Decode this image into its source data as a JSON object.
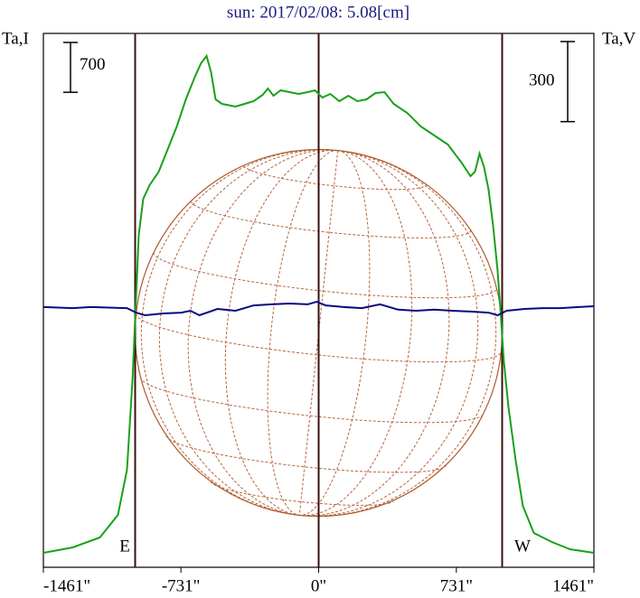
{
  "chart_data": {
    "type": "line",
    "title": "sun: 2017/02/08: 5.08[cm]",
    "ylabel": "Ta,I",
    "y2label": "Ta,V",
    "xlim": [
      -1461,
      1461
    ],
    "xticks": [
      {
        "value": -1461,
        "label": "-1461\""
      },
      {
        "value": -731,
        "label": "-731\""
      },
      {
        "value": 0,
        "label": "0\""
      },
      {
        "value": 731,
        "label": "731\""
      },
      {
        "value": 1461,
        "label": "1461\""
      }
    ],
    "ylim": [
      0,
      7500
    ],
    "y2lim": [
      -1000,
      1000
    ],
    "y_scale_bar": 700,
    "y2_scale_bar": 300,
    "vlines": [
      -974,
      0,
      974
    ],
    "annotations": [
      "E",
      "W"
    ],
    "series": [
      {
        "name": "Ta,I",
        "color": "#1aa01a",
        "x": [
          -1461,
          -1305,
          -1161,
          -1065,
          -1017,
          -988,
          -969,
          -955,
          -931,
          -897,
          -849,
          -801,
          -753,
          -705,
          -657,
          -624,
          -595,
          -571,
          -547,
          -513,
          -441,
          -393,
          -345,
          -297,
          -269,
          -240,
          -202,
          -154,
          -106,
          -58,
          -19,
          19,
          62,
          110,
          158,
          206,
          254,
          302,
          350,
          398,
          470,
          542,
          614,
          686,
          758,
          806,
          830,
          854,
          878,
          902,
          926,
          950,
          964,
          983,
          1007,
          1046,
          1084,
          1142,
          1238,
          1334,
          1461
        ],
        "values": [
          203,
          279,
          419,
          736,
          1371,
          2640,
          3782,
          4670,
          5178,
          5368,
          5558,
          5875,
          6193,
          6574,
          6891,
          7081,
          7183,
          6954,
          6574,
          6510,
          6472,
          6510,
          6548,
          6637,
          6726,
          6624,
          6700,
          6675,
          6650,
          6675,
          6700,
          6599,
          6650,
          6548,
          6624,
          6548,
          6574,
          6662,
          6675,
          6510,
          6383,
          6193,
          6066,
          5939,
          5685,
          5495,
          5558,
          5812,
          5622,
          5304,
          4797,
          4162,
          3655,
          2893,
          2259,
          1497,
          863,
          482,
          355,
          254,
          203
        ]
      },
      {
        "name": "Ta,V",
        "color": "#0a0a80",
        "axis": "y2",
        "x": [
          -1461,
          -1305,
          -1209,
          -1017,
          -969,
          -921,
          -825,
          -729,
          -681,
          -633,
          -537,
          -441,
          -345,
          -249,
          -154,
          -58,
          -10,
          38,
          134,
          230,
          326,
          422,
          518,
          614,
          710,
          806,
          902,
          950,
          998,
          1094,
          1190,
          1286,
          1382,
          1461
        ],
        "values": [
          -25,
          -29,
          -25,
          -29,
          -46,
          -56,
          -49,
          -46,
          -39,
          -56,
          -32,
          -39,
          -19,
          -15,
          -12,
          -15,
          -5,
          -19,
          -25,
          -29,
          -15,
          -35,
          -39,
          -35,
          -39,
          -42,
          -46,
          -56,
          -39,
          -32,
          -29,
          -29,
          -25,
          -22
        ]
      }
    ]
  }
}
